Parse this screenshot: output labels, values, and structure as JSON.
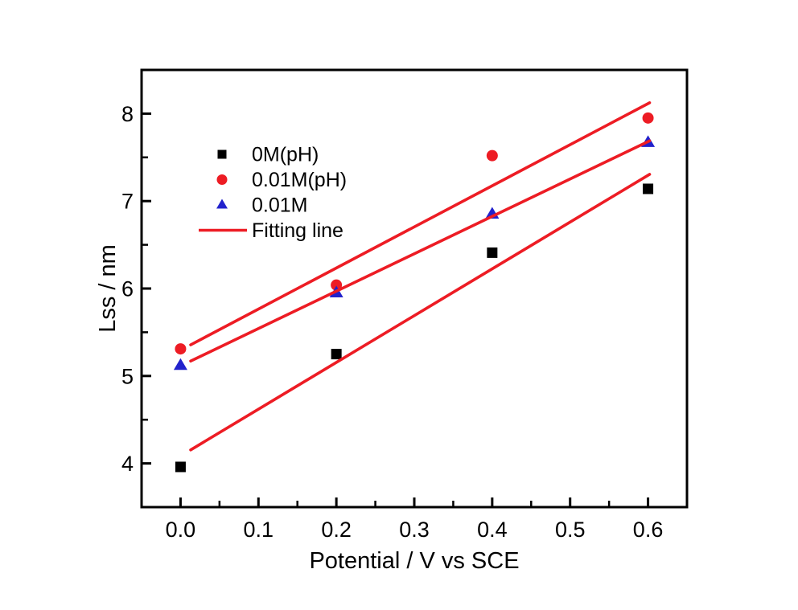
{
  "figure": {
    "background": "#ffffff",
    "accent_red": "#ed1c24",
    "accent_blue": "#2222cc",
    "axis_color": "#000000"
  },
  "chart_data": {
    "type": "scatter",
    "title": "",
    "xlabel": "Potential / V vs SCE",
    "ylabel": "Lss / nm",
    "xlim": [
      -0.05,
      0.65
    ],
    "ylim": [
      3.5,
      8.5
    ],
    "grid": false,
    "x_major_ticks": {
      "values": [
        0.0,
        0.1,
        0.2,
        0.3,
        0.4,
        0.5,
        0.6
      ],
      "labels": [
        "0.0",
        "0.1",
        "0.2",
        "0.3",
        "0.4",
        "0.5",
        "0.6"
      ]
    },
    "x_minor_ticks": [
      0.05,
      0.15,
      0.25,
      0.35,
      0.45,
      0.55
    ],
    "y_major_ticks": {
      "values": [
        4,
        5,
        6,
        7,
        8
      ],
      "labels": [
        "4",
        "5",
        "6",
        "7",
        "8"
      ]
    },
    "y_minor_ticks": [
      4.5,
      5.5,
      6.5,
      7.5
    ],
    "x": [
      0.0,
      0.2,
      0.4,
      0.6
    ],
    "series": [
      {
        "name": "0M(pH)",
        "marker": "square",
        "color": "#000000",
        "values": [
          3.96,
          5.25,
          6.41,
          7.14
        ],
        "fit": {
          "slope": 5.35,
          "intercept": 4.085
        }
      },
      {
        "name": "0.01M(pH)",
        "marker": "circle",
        "color": "#ed1c24",
        "values": [
          5.31,
          6.04,
          7.52,
          7.95
        ],
        "fit": {
          "slope": 4.7,
          "intercept": 5.295
        }
      },
      {
        "name": "0.01M",
        "marker": "triangle",
        "color": "#2222cc",
        "values": [
          5.12,
          5.95,
          6.85,
          7.67
        ],
        "fit": {
          "slope": 4.275,
          "intercept": 5.115
        }
      }
    ],
    "fit_line": {
      "label": "Fitting line",
      "color": "#ed1c24",
      "x_start": 0.013,
      "x_end": 0.602
    },
    "legend": {
      "position": "upper-left-inside",
      "items": [
        {
          "label": "0M(pH)",
          "marker": "square",
          "color": "#000000"
        },
        {
          "label": "0.01M(pH)",
          "marker": "circle",
          "color": "#ed1c24"
        },
        {
          "label": "0.01M",
          "marker": "triangle",
          "color": "#2222cc"
        },
        {
          "label": "Fitting line",
          "marker": "line",
          "color": "#ed1c24"
        }
      ]
    }
  }
}
